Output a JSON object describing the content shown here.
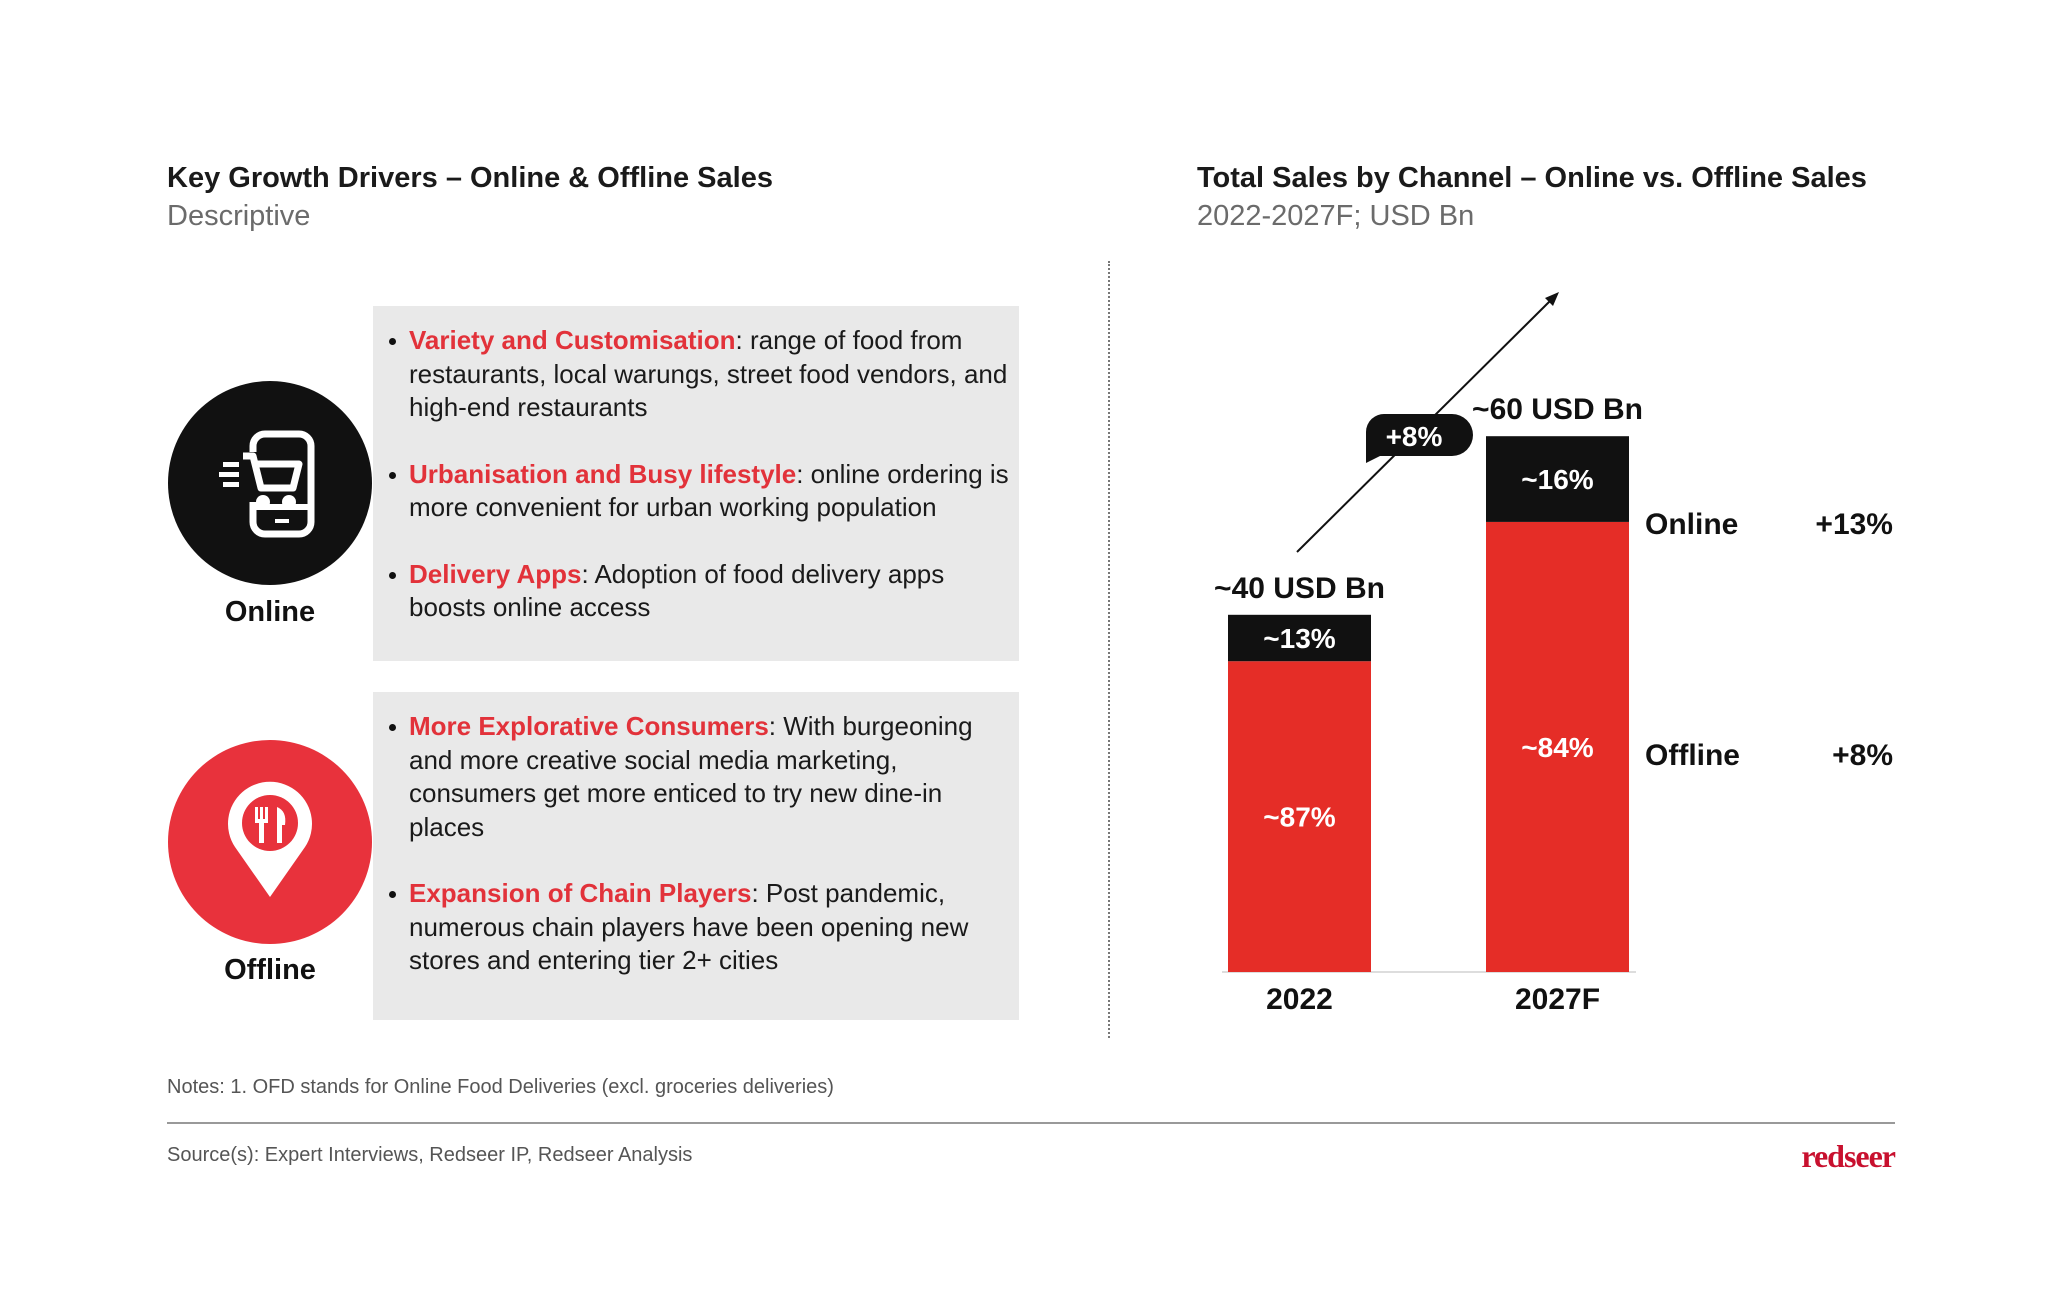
{
  "left": {
    "title": "Key Growth Drivers – Online & Offline Sales",
    "subtitle": "Descriptive",
    "online": {
      "label": "Online",
      "icon": "mobile-cart-icon",
      "bullets": [
        {
          "heading": "Variety and Customisation",
          "text": ":  range of food from restaurants, local warungs, street food vendors, and high-end restaurants"
        },
        {
          "heading": "Urbanisation and Busy lifestyle",
          "text": ": online ordering is more convenient for urban working population"
        },
        {
          "heading": "Delivery Apps",
          "text": ":  Adoption of food delivery apps boosts online access"
        }
      ]
    },
    "offline": {
      "label": "Offline",
      "icon": "restaurant-location-pin-icon",
      "bullets": [
        {
          "heading": "More Explorative Consumers",
          "text": ": With burgeoning and more creative social media marketing, consumers get more enticed to try new dine-in places"
        },
        {
          "heading": "Expansion of Chain Players",
          "text": ": Post pandemic, numerous chain players have been opening new stores and entering tier 2+ cities"
        }
      ]
    }
  },
  "chart_data": {
    "type": "bar",
    "stacked": true,
    "title": "Total Sales by Channel – Online vs. Offline Sales",
    "subtitle": "2022-2027F; USD Bn",
    "categories": [
      "2022",
      "2027F"
    ],
    "totals": [
      40,
      60
    ],
    "total_labels": [
      "~40 USD Bn",
      "~60 USD Bn"
    ],
    "series": [
      {
        "name": "Offline",
        "color": "#e52d27",
        "share": [
          87,
          84
        ],
        "labels": [
          "~87%",
          "~84%"
        ],
        "cagr": "+8%"
      },
      {
        "name": "Online",
        "color": "#111111",
        "share": [
          13,
          16
        ],
        "labels": [
          "~13%",
          "~16%"
        ],
        "cagr": "+13%"
      }
    ],
    "total_cagr": "+8%",
    "grid": false
  },
  "footer": {
    "notes": "Notes: 1. OFD stands for Online Food Deliveries (excl. groceries deliveries)",
    "source": "Source(s): Expert Interviews, Redseer IP, Redseer Analysis",
    "logo": "redseer"
  },
  "colors": {
    "accent_red": "#e2323a",
    "black": "#111111",
    "box_bg": "#e9e9e9"
  }
}
